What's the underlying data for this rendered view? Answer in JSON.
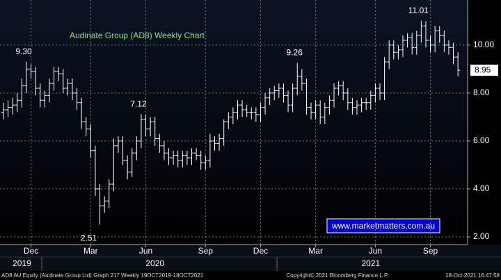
{
  "chart_data": {
    "type": "ohlc",
    "title": "Audinate Group (AD8) Weekly Chart",
    "color": "#ffffff",
    "grid": true,
    "ylim": [
      1.68,
      11.88
    ],
    "yticks": [
      {
        "value": 2,
        "label": "2.00"
      },
      {
        "value": 4,
        "label": "4.00"
      },
      {
        "value": 6,
        "label": "6.00"
      },
      {
        "value": 8,
        "label": "8.00"
      },
      {
        "value": 10,
        "label": "10.00"
      }
    ],
    "xlim": [
      -0.76,
      101.1
    ],
    "xticks": [
      {
        "value": 6,
        "label": "Dec"
      },
      {
        "value": 19,
        "label": "Mar"
      },
      {
        "value": 31,
        "label": "Jun"
      },
      {
        "value": 44,
        "label": "Sep"
      },
      {
        "value": 56,
        "label": "Dec"
      },
      {
        "value": 68,
        "label": "Mar"
      },
      {
        "value": 81,
        "label": "Jun"
      },
      {
        "value": 93,
        "label": "Sep"
      }
    ],
    "year_ticks": [
      {
        "value": 4,
        "label": "2019"
      },
      {
        "value": 33,
        "label": "2020"
      },
      {
        "value": 80,
        "label": "2021"
      }
    ],
    "open": [
      7.2,
      7.3,
      7.4,
      7.5,
      7.7,
      8.3,
      9.0,
      8.9,
      8.2,
      7.7,
      7.9,
      8.4,
      8.9,
      8.8,
      8.2,
      8.4,
      8.0,
      7.6,
      6.8,
      6.5,
      5.6,
      4.0,
      3.3,
      3.5,
      4.2,
      5.8,
      6.0,
      5.2,
      4.7,
      5.5,
      6.0,
      6.9,
      6.5,
      6.8,
      6.1,
      5.8,
      5.5,
      5.3,
      5.4,
      5.2,
      5.4,
      5.3,
      5.5,
      5.4,
      5.1,
      5.2,
      6.0,
      5.9,
      6.1,
      6.8,
      7.0,
      7.2,
      7.5,
      7.3,
      7.2,
      7.2,
      7.1,
      7.4,
      7.8,
      8.0,
      8.1,
      8.2,
      7.9,
      7.5,
      8.2,
      8.7,
      8.4,
      7.4,
      7.2,
      7.5,
      7.0,
      7.4,
      7.7,
      8.2,
      8.3,
      8.0,
      7.6,
      7.4,
      7.5,
      7.6,
      7.6,
      7.9,
      8.2,
      8.0,
      9.3,
      10.0,
      9.7,
      9.8,
      10.2,
      10.3,
      9.9,
      10.4,
      10.8,
      10.2,
      10.0,
      10.6,
      10.4,
      10.0,
      9.9,
      9.5
    ],
    "high": [
      7.6,
      7.7,
      7.8,
      8.0,
      8.6,
      9.3,
      9.2,
      9.1,
      8.4,
      8.1,
      8.6,
      9.1,
      9.1,
      9.0,
      8.6,
      8.6,
      8.2,
      7.8,
      7.0,
      6.7,
      5.8,
      4.2,
      3.7,
      4.4,
      6.1,
      6.2,
      6.2,
      5.4,
      5.7,
      6.2,
      7.12,
      7.1,
      7.0,
      7.0,
      6.3,
      6.0,
      5.7,
      5.6,
      5.6,
      5.6,
      5.6,
      5.7,
      5.7,
      5.6,
      5.4,
      6.3,
      6.2,
      6.3,
      6.9,
      7.2,
      7.4,
      7.7,
      7.7,
      7.5,
      7.4,
      7.4,
      7.6,
      8.0,
      8.2,
      8.3,
      8.4,
      8.4,
      8.1,
      8.4,
      9.26,
      9.0,
      8.6,
      7.6,
      7.7,
      7.7,
      7.6,
      7.9,
      8.4,
      8.5,
      8.5,
      8.2,
      7.8,
      7.7,
      7.8,
      7.8,
      8.1,
      8.4,
      8.4,
      9.5,
      10.2,
      10.2,
      10.0,
      10.4,
      10.5,
      10.5,
      10.6,
      11.01,
      11.0,
      10.4,
      10.8,
      10.8,
      10.6,
      10.2,
      10.1,
      9.7
    ],
    "low": [
      6.9,
      7.0,
      7.1,
      7.2,
      7.4,
      8.0,
      8.6,
      7.9,
      7.4,
      7.4,
      7.6,
      8.1,
      8.5,
      8.0,
      7.9,
      7.7,
      7.3,
      6.5,
      6.2,
      5.3,
      3.7,
      2.51,
      3.0,
      3.2,
      3.9,
      5.5,
      5.0,
      4.4,
      4.5,
      5.2,
      5.7,
      6.2,
      6.2,
      5.8,
      5.5,
      5.2,
      5.0,
      5.0,
      4.9,
      4.9,
      5.0,
      5.0,
      5.2,
      4.8,
      4.8,
      4.9,
      5.6,
      5.6,
      5.8,
      6.5,
      6.7,
      6.9,
      7.0,
      7.0,
      6.9,
      6.8,
      6.8,
      7.1,
      7.5,
      7.7,
      7.8,
      7.6,
      7.2,
      7.2,
      7.9,
      8.1,
      7.1,
      6.9,
      6.9,
      6.7,
      6.7,
      7.1,
      7.4,
      7.9,
      7.7,
      7.3,
      7.1,
      7.1,
      7.2,
      7.3,
      7.3,
      7.6,
      7.7,
      7.7,
      9.0,
      9.4,
      9.4,
      9.5,
      9.9,
      9.6,
      9.6,
      10.1,
      9.9,
      9.7,
      9.7,
      10.1,
      9.7,
      9.6,
      9.2,
      8.7
    ],
    "close": [
      7.3,
      7.4,
      7.5,
      7.7,
      8.3,
      9.0,
      8.9,
      8.2,
      7.7,
      7.9,
      8.4,
      8.9,
      8.8,
      8.2,
      8.4,
      8.0,
      7.6,
      6.8,
      6.5,
      5.6,
      4.0,
      3.3,
      3.5,
      4.2,
      5.8,
      6.0,
      5.2,
      4.7,
      5.5,
      6.0,
      6.9,
      6.5,
      6.8,
      6.1,
      5.8,
      5.5,
      5.3,
      5.4,
      5.2,
      5.4,
      5.3,
      5.5,
      5.4,
      5.1,
      5.2,
      6.0,
      5.9,
      6.1,
      6.8,
      7.0,
      7.2,
      7.5,
      7.3,
      7.2,
      7.2,
      7.1,
      7.4,
      7.8,
      8.0,
      8.1,
      8.2,
      7.9,
      7.5,
      8.2,
      8.7,
      8.4,
      7.4,
      7.2,
      7.5,
      7.0,
      7.4,
      7.7,
      8.2,
      8.3,
      8.0,
      7.6,
      7.4,
      7.5,
      7.6,
      7.6,
      7.9,
      8.2,
      8.0,
      9.3,
      10.0,
      9.7,
      9.8,
      10.2,
      10.3,
      9.9,
      10.4,
      10.8,
      10.2,
      10.0,
      10.6,
      10.4,
      10.0,
      9.9,
      9.5,
      8.95
    ],
    "annotations": [
      {
        "label": "9.30",
        "value": 9.3
      },
      {
        "label": "2.51",
        "value": 2.51
      },
      {
        "label": "7.12",
        "value": 7.12
      },
      {
        "label": "9.26",
        "value": 9.26
      },
      {
        "label": "11.01",
        "value": 11.01
      }
    ],
    "last_price": {
      "label": "8.95",
      "value": 8.95
    },
    "watermark": "www.marketmatters.com.au",
    "footer": {
      "left": "AD8 AU Equity (Audinate Group Ltd) Graph 217  Weekly 19OCT2019-18OCT2021",
      "center": "Copyright© 2021 Bloomberg Finance L.P.",
      "right": "18-Oct-2021 16:47:58"
    }
  }
}
